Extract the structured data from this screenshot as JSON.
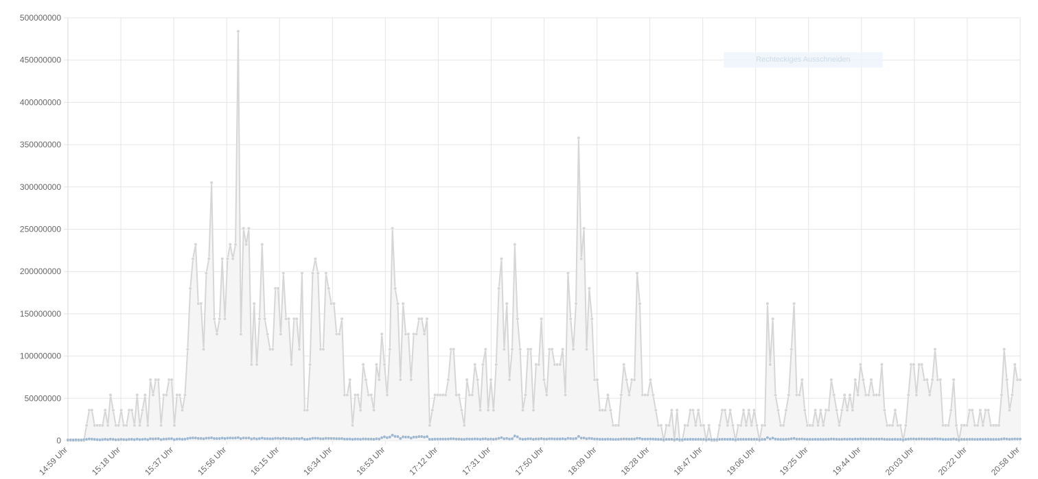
{
  "chart_data": {
    "type": "line",
    "title": "",
    "xlabel": "",
    "ylabel": "",
    "ylim": [
      0,
      500000000
    ],
    "y_ticks": [
      0,
      50000000,
      100000000,
      150000000,
      200000000,
      250000000,
      300000000,
      350000000,
      400000000,
      450000000,
      500000000
    ],
    "x_tick_labels": [
      "14:59 Uhr",
      "15:18 Uhr",
      "15:37 Uhr",
      "15:56 Uhr",
      "16:15 Uhr",
      "16:34 Uhr",
      "16:53 Uhr",
      "17:12 Uhr",
      "17:31 Uhr",
      "17:50 Uhr",
      "18:09 Uhr",
      "18:28 Uhr",
      "18:47 Uhr",
      "19:06 Uhr",
      "19:25 Uhr",
      "19:44 Uhr",
      "20:03 Uhr",
      "20:22 Uhr",
      "20:58 Uhr"
    ],
    "grid": true,
    "legend": "none",
    "colors": {
      "series1": "#d6d6d6",
      "series1_fill": "#f5f5f5",
      "series2": "#9fb8d0",
      "grid": "#e5e5e5"
    },
    "series": [
      {
        "values": [
          0,
          0,
          0,
          0,
          0,
          0,
          0,
          18000000,
          36000000,
          36000000,
          18000000,
          18000000,
          18000000,
          18000000,
          36000000,
          18000000,
          54000000,
          36000000,
          18000000,
          18000000,
          36000000,
          18000000,
          18000000,
          36000000,
          36000000,
          18000000,
          54000000,
          18000000,
          36000000,
          54000000,
          18000000,
          72000000,
          54000000,
          72000000,
          72000000,
          18000000,
          54000000,
          54000000,
          72000000,
          72000000,
          18000000,
          54000000,
          54000000,
          36000000,
          54000000,
          108000000,
          180000000,
          215000000,
          232000000,
          162000000,
          162000000,
          108000000,
          198000000,
          215000000,
          305000000,
          144000000,
          126000000,
          144000000,
          215000000,
          144000000,
          215000000,
          232000000,
          215000000,
          232000000,
          484000000,
          126000000,
          251000000,
          232000000,
          251000000,
          90000000,
          162000000,
          90000000,
          144000000,
          232000000,
          144000000,
          126000000,
          108000000,
          108000000,
          180000000,
          180000000,
          126000000,
          198000000,
          144000000,
          144000000,
          90000000,
          144000000,
          144000000,
          108000000,
          198000000,
          36000000,
          36000000,
          90000000,
          198000000,
          215000000,
          198000000,
          108000000,
          108000000,
          198000000,
          180000000,
          162000000,
          162000000,
          126000000,
          126000000,
          144000000,
          54000000,
          54000000,
          72000000,
          18000000,
          54000000,
          54000000,
          36000000,
          90000000,
          72000000,
          54000000,
          54000000,
          36000000,
          90000000,
          72000000,
          126000000,
          90000000,
          54000000,
          108000000,
          251000000,
          180000000,
          162000000,
          72000000,
          162000000,
          126000000,
          126000000,
          72000000,
          126000000,
          126000000,
          144000000,
          144000000,
          126000000,
          144000000,
          18000000,
          36000000,
          54000000,
          54000000,
          54000000,
          54000000,
          54000000,
          72000000,
          108000000,
          108000000,
          54000000,
          54000000,
          36000000,
          18000000,
          72000000,
          54000000,
          54000000,
          90000000,
          72000000,
          36000000,
          90000000,
          108000000,
          36000000,
          72000000,
          36000000,
          90000000,
          180000000,
          215000000,
          108000000,
          162000000,
          72000000,
          108000000,
          232000000,
          144000000,
          108000000,
          36000000,
          54000000,
          108000000,
          108000000,
          36000000,
          90000000,
          90000000,
          144000000,
          72000000,
          54000000,
          108000000,
          108000000,
          90000000,
          90000000,
          90000000,
          108000000,
          54000000,
          198000000,
          144000000,
          108000000,
          162000000,
          358000000,
          215000000,
          251000000,
          108000000,
          180000000,
          144000000,
          72000000,
          72000000,
          36000000,
          36000000,
          36000000,
          54000000,
          36000000,
          18000000,
          18000000,
          18000000,
          54000000,
          90000000,
          72000000,
          54000000,
          72000000,
          72000000,
          198000000,
          162000000,
          54000000,
          54000000,
          54000000,
          72000000,
          54000000,
          36000000,
          18000000,
          18000000,
          0,
          18000000,
          18000000,
          36000000,
          0,
          36000000,
          0,
          0,
          18000000,
          18000000,
          36000000,
          36000000,
          18000000,
          36000000,
          18000000,
          18000000,
          0,
          18000000,
          0,
          0,
          0,
          18000000,
          36000000,
          36000000,
          18000000,
          36000000,
          18000000,
          0,
          18000000,
          18000000,
          36000000,
          18000000,
          36000000,
          18000000,
          36000000,
          18000000,
          0,
          18000000,
          18000000,
          162000000,
          90000000,
          144000000,
          54000000,
          36000000,
          18000000,
          18000000,
          36000000,
          54000000,
          108000000,
          162000000,
          54000000,
          54000000,
          72000000,
          36000000,
          18000000,
          18000000,
          18000000,
          36000000,
          18000000,
          36000000,
          18000000,
          36000000,
          36000000,
          72000000,
          54000000,
          36000000,
          18000000,
          36000000,
          54000000,
          36000000,
          54000000,
          36000000,
          72000000,
          54000000,
          90000000,
          72000000,
          54000000,
          54000000,
          72000000,
          54000000,
          54000000,
          54000000,
          90000000,
          36000000,
          18000000,
          18000000,
          18000000,
          36000000,
          18000000,
          18000000,
          0,
          18000000,
          54000000,
          90000000,
          90000000,
          54000000,
          90000000,
          90000000,
          72000000,
          72000000,
          54000000,
          72000000,
          108000000,
          72000000,
          72000000,
          18000000,
          18000000,
          18000000,
          36000000,
          72000000,
          18000000,
          0,
          18000000,
          18000000,
          18000000,
          36000000,
          36000000,
          18000000,
          18000000,
          36000000,
          18000000,
          36000000,
          36000000,
          18000000,
          18000000,
          18000000,
          18000000,
          54000000,
          108000000,
          72000000,
          36000000,
          54000000,
          90000000,
          72000000,
          72000000
        ]
      },
      {
        "values": [
          800000,
          900000,
          800000,
          1000000,
          900000,
          800000,
          1200000,
          1500000,
          2000000,
          1800000,
          1500000,
          1200000,
          1000000,
          1300000,
          1600000,
          1200000,
          1800000,
          1500000,
          1000000,
          1200000,
          1500000,
          1300000,
          1100000,
          1500000,
          1600000,
          1200000,
          1800000,
          1300000,
          1500000,
          1800000,
          1200000,
          2200000,
          2000000,
          2200000,
          2300000,
          1200000,
          1800000,
          1900000,
          2200000,
          2300000,
          1200000,
          1800000,
          1900000,
          1600000,
          1800000,
          2500000,
          3000000,
          3200000,
          3100000,
          2600000,
          2600000,
          2200000,
          2900000,
          3000000,
          3300000,
          2500000,
          2400000,
          2500000,
          3000000,
          2500000,
          3000000,
          3100000,
          3000000,
          3100000,
          3500000,
          2400000,
          3100000,
          3000000,
          3100000,
          2000000,
          2600000,
          2000000,
          2400000,
          3000000,
          2400000,
          2300000,
          2200000,
          2200000,
          2700000,
          2700000,
          2300000,
          2800000,
          2400000,
          2400000,
          2000000,
          2400000,
          2400000,
          2200000,
          2700000,
          1600000,
          1600000,
          2000000,
          2700000,
          2800000,
          2700000,
          2200000,
          2200000,
          2700000,
          2600000,
          2500000,
          2500000,
          2300000,
          2300000,
          2400000,
          1800000,
          1800000,
          1900000,
          1500000,
          1800000,
          1800000,
          1600000,
          2000000,
          1900000,
          1800000,
          1800000,
          1600000,
          2200000,
          1900000,
          3500000,
          4500000,
          3500000,
          4200000,
          6500000,
          5000000,
          4800000,
          2500000,
          4500000,
          4200000,
          4200000,
          3000000,
          4200000,
          4200000,
          4800000,
          4800000,
          4200000,
          4800000,
          1500000,
          1600000,
          1800000,
          1800000,
          1800000,
          1800000,
          1800000,
          1900000,
          2200000,
          2200000,
          1800000,
          1800000,
          1600000,
          1500000,
          1900000,
          1800000,
          1800000,
          2000000,
          1900000,
          1600000,
          2000000,
          2200000,
          1600000,
          1900000,
          1600000,
          2000000,
          2700000,
          3500000,
          2200000,
          2600000,
          1900000,
          2200000,
          5500000,
          4500000,
          2200000,
          1600000,
          1800000,
          2200000,
          2200000,
          1600000,
          2000000,
          2000000,
          2400000,
          1900000,
          1800000,
          2200000,
          2200000,
          2000000,
          2000000,
          2000000,
          2200000,
          1800000,
          2700000,
          2400000,
          2200000,
          2600000,
          5000000,
          3000000,
          3100000,
          2200000,
          2700000,
          2400000,
          1900000,
          1900000,
          1600000,
          1600000,
          1600000,
          1800000,
          1600000,
          1500000,
          1500000,
          1500000,
          1800000,
          2000000,
          1900000,
          1800000,
          1900000,
          1900000,
          2700000,
          2600000,
          1800000,
          1800000,
          1800000,
          1900000,
          1800000,
          1600000,
          1500000,
          1500000,
          1200000,
          1500000,
          1500000,
          1600000,
          1200000,
          1600000,
          1200000,
          1200000,
          1500000,
          1500000,
          1600000,
          1600000,
          1500000,
          1600000,
          1500000,
          1500000,
          1200000,
          1500000,
          1200000,
          1200000,
          1200000,
          1500000,
          1600000,
          1600000,
          1500000,
          1600000,
          1500000,
          1200000,
          1500000,
          1500000,
          1600000,
          1500000,
          1600000,
          1500000,
          1600000,
          1500000,
          1200000,
          1500000,
          1500000,
          3500000,
          2000000,
          3000000,
          1800000,
          1600000,
          1500000,
          1500000,
          1600000,
          1800000,
          2200000,
          2600000,
          1800000,
          1800000,
          1900000,
          1600000,
          1500000,
          1500000,
          1500000,
          1600000,
          1500000,
          1600000,
          1500000,
          1600000,
          1600000,
          1900000,
          1800000,
          1600000,
          1500000,
          1600000,
          1800000,
          1600000,
          1800000,
          1600000,
          1900000,
          1800000,
          2000000,
          1900000,
          1800000,
          1800000,
          1900000,
          1800000,
          1800000,
          1800000,
          2000000,
          1600000,
          1500000,
          1500000,
          1500000,
          1600000,
          1500000,
          1500000,
          1200000,
          1500000,
          1800000,
          2000000,
          2000000,
          1800000,
          2000000,
          2000000,
          1900000,
          1900000,
          1800000,
          1900000,
          2200000,
          1900000,
          1900000,
          1500000,
          1500000,
          1500000,
          1600000,
          1900000,
          1500000,
          1200000,
          1500000,
          1500000,
          1500000,
          1600000,
          1600000,
          1500000,
          1500000,
          1600000,
          1500000,
          1600000,
          1600000,
          1500000,
          1500000,
          1500000,
          1500000,
          1800000,
          2200000,
          1900000,
          1600000,
          1800000,
          2000000,
          1900000,
          1900000
        ]
      }
    ]
  },
  "overlay": {
    "label": "Rechteckiges Ausschneiden"
  }
}
